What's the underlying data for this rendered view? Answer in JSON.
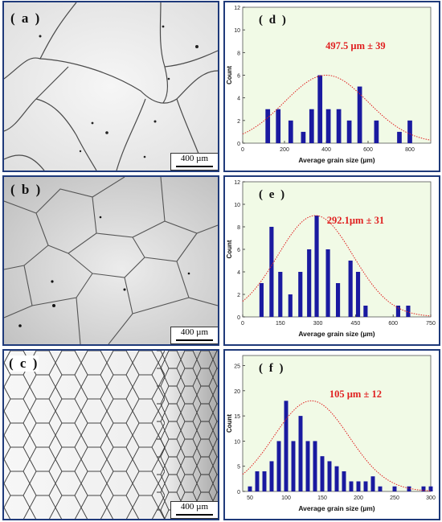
{
  "micrographs": [
    {
      "label": "( a )",
      "scale": "400 µm"
    },
    {
      "label": "( b )",
      "scale": "400 µm"
    },
    {
      "label": "( c )",
      "scale": "400 µm"
    }
  ],
  "chart_data": [
    {
      "type": "bar",
      "panel": "( d )",
      "annotation": "497.5 µm ± 39",
      "xlabel": "Average grain size (µm)",
      "ylabel": "Count",
      "xlim": [
        0,
        900
      ],
      "ylim": [
        0,
        12
      ],
      "xticks": [
        0,
        200,
        400,
        600,
        800
      ],
      "yticks": [
        0,
        2,
        4,
        6,
        8,
        10,
        12
      ],
      "x": [
        120,
        170,
        230,
        290,
        330,
        370,
        410,
        460,
        510,
        560,
        640,
        750,
        800
      ],
      "values": [
        3,
        3,
        2,
        1,
        3,
        6,
        3,
        3,
        2,
        5,
        2,
        1,
        2
      ],
      "fit": {
        "type": "normal",
        "mean": 400,
        "sd": 200,
        "peak": 6
      },
      "colors": {
        "bars": "#1a1aa0",
        "fit": "#e02020",
        "annotation": "#e02020",
        "background": "#f1fae6"
      }
    },
    {
      "type": "bar",
      "panel": "( e )",
      "annotation": "292.1µm ± 31",
      "xlabel": "Average grain size (µm)",
      "ylabel": "Count",
      "xlim": [
        0,
        750
      ],
      "ylim": [
        0,
        12
      ],
      "xticks": [
        0,
        150,
        300,
        450,
        600,
        750
      ],
      "yticks": [
        0,
        2,
        4,
        6,
        8,
        10,
        12
      ],
      "x": [
        75,
        115,
        150,
        190,
        230,
        265,
        295,
        340,
        380,
        430,
        460,
        490,
        620,
        660
      ],
      "values": [
        3,
        8,
        4,
        2,
        4,
        6,
        9,
        6,
        3,
        5,
        4,
        1,
        1,
        1
      ],
      "fit": {
        "type": "normal",
        "mean": 290,
        "sd": 150,
        "peak": 9
      },
      "colors": {
        "bars": "#1a1aa0",
        "fit": "#e02020",
        "annotation": "#e02020",
        "background": "#f1fae6"
      }
    },
    {
      "type": "bar",
      "panel": "( f )",
      "annotation": "105 µm ± 12",
      "xlabel": "Average grain size (µm)",
      "ylabel": "Count",
      "xlim": [
        40,
        300
      ],
      "ylim": [
        0,
        27
      ],
      "xticks": [
        50,
        100,
        150,
        200,
        250,
        300
      ],
      "yticks": [
        0,
        5,
        10,
        15,
        20,
        25
      ],
      "x": [
        50,
        60,
        70,
        80,
        90,
        100,
        110,
        120,
        130,
        140,
        150,
        160,
        170,
        180,
        190,
        200,
        210,
        220,
        230,
        240,
        250,
        260,
        270,
        280,
        290,
        300
      ],
      "values": [
        1,
        4,
        4,
        6,
        10,
        18,
        10,
        15,
        10,
        10,
        7,
        6,
        5,
        4,
        2,
        2,
        2,
        3,
        1,
        0,
        1,
        0,
        1,
        0,
        1,
        1
      ],
      "fit": {
        "type": "normal",
        "mean": 135,
        "sd": 52,
        "peak": 18
      },
      "colors": {
        "bars": "#1a1aa0",
        "fit": "#e02020",
        "annotation": "#e02020",
        "background": "#f1fae6"
      }
    }
  ]
}
